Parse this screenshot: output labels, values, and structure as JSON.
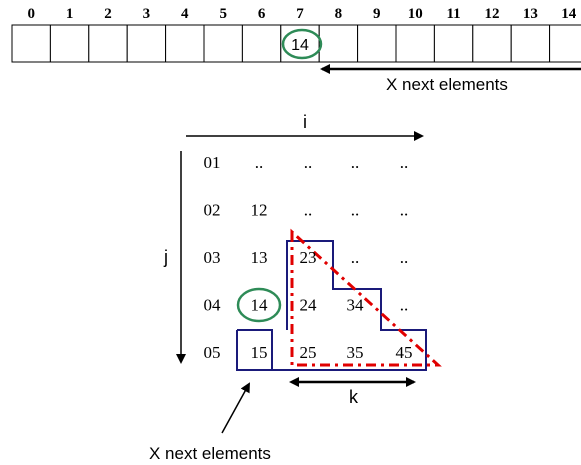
{
  "array_indices": [
    "0",
    "1",
    "2",
    "3",
    "4",
    "5",
    "6",
    "7",
    "8",
    "9",
    "10",
    "11",
    "12",
    "13",
    "14"
  ],
  "array_cells": [
    "",
    "",
    "",
    "",
    "",
    "",
    "",
    "14",
    "",
    "",
    "",
    "",
    "",
    "",
    ""
  ],
  "highlight_cell_index": 7,
  "top_arrow_label": "X next elements",
  "i_label": "i",
  "j_label": "j",
  "k_label": "k",
  "row_labels": [
    "01",
    "02",
    "03",
    "04",
    "05"
  ],
  "grid_values": [
    [
      "..",
      "..",
      "..",
      ".."
    ],
    [
      "12",
      "..",
      "..",
      ".."
    ],
    [
      "13",
      "23",
      "..",
      ".."
    ],
    [
      "14",
      "24",
      "34",
      ".."
    ],
    [
      "15",
      "25",
      "35",
      "45"
    ]
  ],
  "bottom_label": "X next elements",
  "colors": {
    "green": "#2e8b57",
    "navy": "#1a1a7a",
    "red": "#e00000",
    "black": "#000000"
  }
}
